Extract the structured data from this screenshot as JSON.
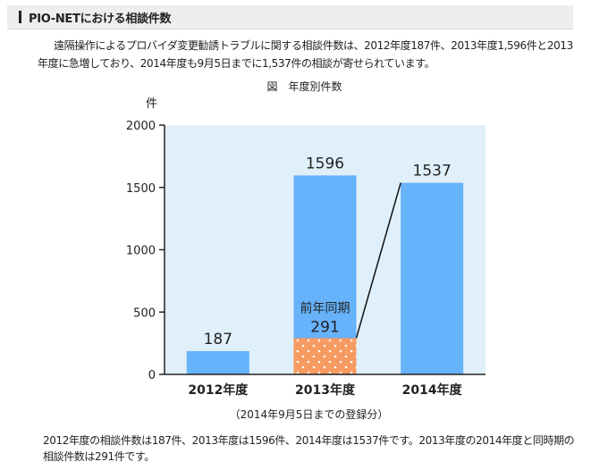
{
  "header": {
    "title": "PIO-NETにおける相談件数"
  },
  "intro": {
    "line1": "遠隔操作によるプロバイダ変更勧誘トラブルに関する相談件数は、2012年度187件、2013年度1,596件と2013",
    "line2": "年度に急増しており、2014年度も9月5日までに1,537件の相談が寄せられています。"
  },
  "figure_caption": "図　年度別件数",
  "note": "（2014年9月5日までの登録分）",
  "summary": {
    "line1": "2012年度の相談件数は187件、2013年度は1596件、2014年度は1537件です。2013年度の2014年度と同時期の",
    "line2": "相談件数は291件です。"
  },
  "colors": {
    "plot_bg": "#dff0fb",
    "bar": "#66b2fb",
    "prior_period": "#f79a62",
    "dots": "#ffffff",
    "axis": "#222222"
  },
  "chart_data": {
    "type": "bar",
    "ylabel": "件",
    "ylim": [
      0,
      2000
    ],
    "yticks": [
      "0",
      "500",
      "1000",
      "1500",
      "2000"
    ],
    "categories": [
      "2012年度",
      "2013年度",
      "2014年度"
    ],
    "values": [
      187,
      1596,
      1537
    ],
    "value_labels": [
      "187",
      "1596",
      "1537"
    ],
    "prior_period": {
      "category": "2013年度",
      "label": "前年同期",
      "value": 291,
      "value_label": "291",
      "compare_to": "2014年度"
    }
  }
}
